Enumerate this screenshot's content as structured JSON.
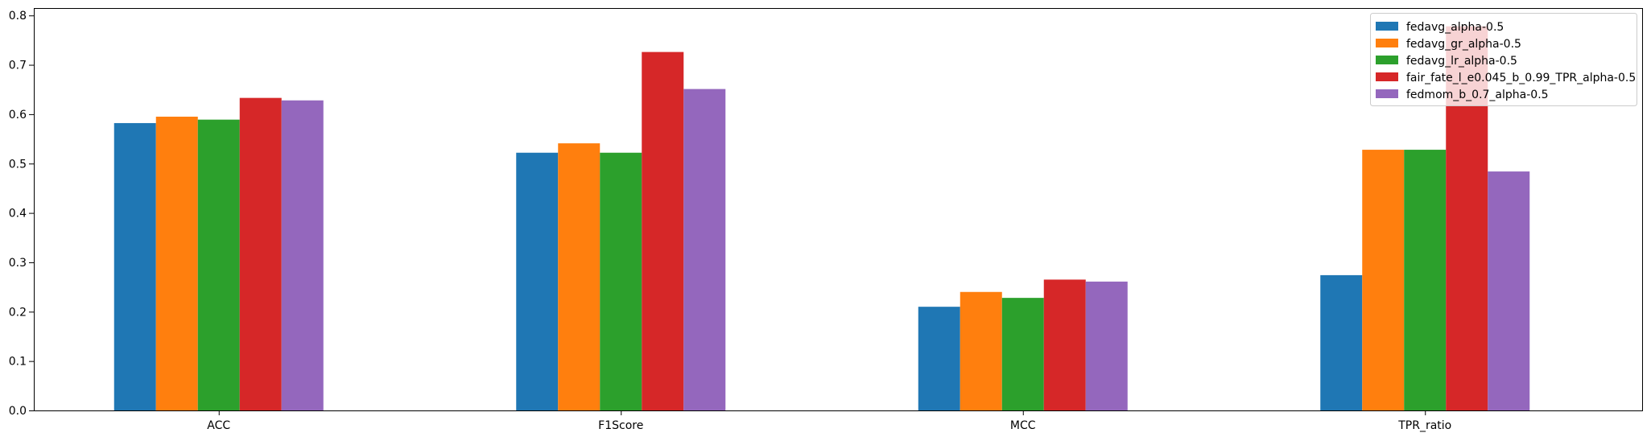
{
  "chart_data": {
    "type": "bar",
    "categories": [
      "ACC",
      "F1Score",
      "MCC",
      "TPR_ratio"
    ],
    "series": [
      {
        "name": "fedavg_alpha-0.5",
        "color": "#1f77b4",
        "values": [
          0.582,
          0.522,
          0.21,
          0.274
        ]
      },
      {
        "name": "fedavg_gr_alpha-0.5",
        "color": "#ff7f0e",
        "values": [
          0.595,
          0.541,
          0.24,
          0.528
        ]
      },
      {
        "name": "fedavg_lr_alpha-0.5",
        "color": "#2ca02c",
        "values": [
          0.589,
          0.522,
          0.228,
          0.528
        ]
      },
      {
        "name": "fair_fate_l_e0.045_b_0.99_TPR_alpha-0.5",
        "color": "#d62728",
        "values": [
          0.633,
          0.726,
          0.265,
          0.778
        ]
      },
      {
        "name": "fedmom_b_0.7_alpha-0.5",
        "color": "#9467bd",
        "values": [
          0.628,
          0.651,
          0.261,
          0.484
        ]
      }
    ],
    "ylim": [
      0,
      0.815
    ],
    "yticks": [
      "0.0",
      "0.1",
      "0.2",
      "0.3",
      "0.4",
      "0.5",
      "0.6",
      "0.7",
      "0.8"
    ],
    "title": "",
    "xlabel": "",
    "ylabel": "",
    "legend_position": "top-right",
    "grid": false
  }
}
